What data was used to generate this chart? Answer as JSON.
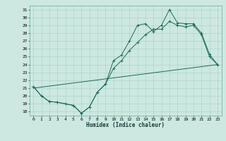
{
  "title": "",
  "xlabel": "Humidex (Indice chaleur)",
  "ylabel": "",
  "bg_color": "#cce8e0",
  "line_color": "#1a6b5a",
  "grid_color": "#a8cec8",
  "xlim": [
    -0.5,
    23.5
  ],
  "ylim": [
    17.5,
    31.5
  ],
  "xticks": [
    0,
    1,
    2,
    3,
    4,
    5,
    6,
    7,
    8,
    9,
    10,
    11,
    12,
    13,
    14,
    15,
    16,
    17,
    18,
    19,
    20,
    21,
    22,
    23
  ],
  "yticks": [
    18,
    19,
    20,
    21,
    22,
    23,
    24,
    25,
    26,
    27,
    28,
    29,
    30,
    31
  ],
  "series1_x": [
    0,
    1,
    2,
    3,
    4,
    5,
    6,
    7,
    8,
    9,
    10,
    11,
    12,
    13,
    14,
    15,
    16,
    17,
    18,
    19,
    20,
    21,
    22,
    23
  ],
  "series1_y": [
    21.2,
    20.0,
    19.3,
    19.2,
    19.0,
    18.8,
    17.8,
    18.6,
    20.5,
    21.5,
    24.5,
    25.2,
    27.0,
    29.0,
    29.2,
    28.2,
    29.0,
    31.0,
    29.3,
    29.2,
    29.2,
    28.0,
    25.3,
    24.0
  ],
  "series2_x": [
    0,
    1,
    2,
    3,
    4,
    5,
    6,
    7,
    8,
    9,
    10,
    11,
    12,
    13,
    14,
    15,
    16,
    17,
    18,
    19,
    20,
    21,
    22,
    23
  ],
  "series2_y": [
    21.2,
    20.0,
    19.3,
    19.2,
    19.0,
    18.8,
    17.8,
    18.6,
    20.5,
    21.5,
    23.5,
    24.5,
    25.8,
    26.8,
    27.8,
    28.5,
    28.5,
    29.5,
    29.0,
    28.8,
    29.0,
    27.8,
    25.0,
    24.0
  ],
  "series3_x": [
    0,
    23
  ],
  "series3_y": [
    21.0,
    24.0
  ],
  "xlabel_fontsize": 5.5,
  "tick_fontsize": 4.5
}
